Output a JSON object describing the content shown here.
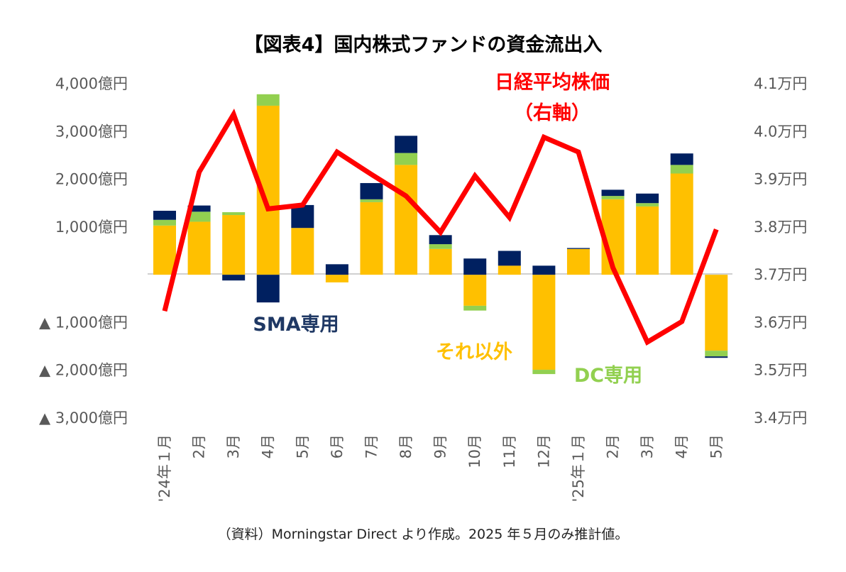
{
  "chart_data": {
    "type": "bar",
    "stacked": true,
    "title": "【図表4】国内株式ファンドの資金流出入",
    "categories": [
      "'24年１月",
      "2月",
      "3月",
      "4月",
      "5月",
      "6月",
      "7月",
      "8月",
      "9月",
      "10月",
      "11月",
      "12月",
      "'25年１月",
      "2月",
      "3月",
      "4月",
      "5月"
    ],
    "left_axis": {
      "unit": "億円",
      "ylim": [
        -3000,
        4000
      ],
      "ticks": [
        "4,000億円",
        "3,000億円",
        "2,000億円",
        "1,000億円",
        "",
        "▲ 1,000億円",
        "▲ 2,000億円",
        "▲ 3,000億円"
      ]
    },
    "right_axis": {
      "unit": "万円",
      "ylim": [
        3.4,
        4.1
      ],
      "ticks": [
        "4.1万円",
        "4.0万円",
        "3.9万円",
        "3.8万円",
        "3.7万円",
        "3.6万円",
        "3.5万円",
        "3.4万円"
      ]
    },
    "series": [
      {
        "name": "それ以外",
        "color": "#FFC000",
        "values": [
          1030,
          1110,
          1250,
          3540,
          980,
          -160,
          1520,
          2300,
          540,
          -650,
          190,
          -1990,
          540,
          1580,
          1430,
          2120,
          -1590
        ]
      },
      {
        "name": "DC専用",
        "color": "#92D050",
        "values": [
          120,
          210,
          60,
          240,
          0,
          0,
          60,
          250,
          100,
          -100,
          0,
          -90,
          0,
          70,
          70,
          180,
          -120
        ]
      },
      {
        "name": "SMA専用",
        "color": "#002060",
        "values": [
          190,
          130,
          -120,
          -580,
          480,
          220,
          340,
          360,
          190,
          340,
          310,
          190,
          20,
          130,
          200,
          240,
          -30
        ]
      }
    ],
    "line": {
      "name": "日経平均株価",
      "axis": "right",
      "color": "#FF0000",
      "values": [
        3.624,
        3.915,
        4.036,
        3.838,
        3.846,
        3.957,
        3.91,
        3.865,
        3.789,
        3.907,
        3.82,
        3.988,
        3.957,
        3.715,
        3.559,
        3.602,
        3.795
      ]
    },
    "annotations": {
      "nikkei": "日経平均株価",
      "nikkei_axis": "（右軸）",
      "sma": "SMA専用",
      "other": "それ以外",
      "dc": "DC専用"
    },
    "source": "（資料）Morningstar Direct より作成。2025 年５月のみ推計値。"
  }
}
